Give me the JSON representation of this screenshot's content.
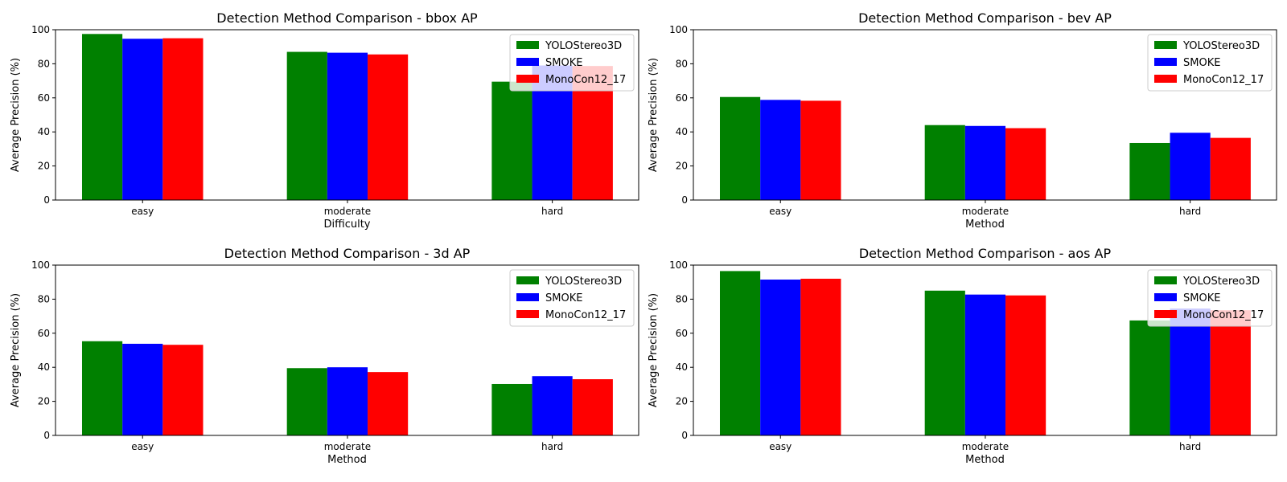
{
  "chart_data": [
    {
      "type": "bar",
      "title": "Detection Method Comparison - bbox AP",
      "xlabel": "Difficulty",
      "ylabel": "Average Precision (%)",
      "categories": [
        "easy",
        "moderate",
        "hard"
      ],
      "ylim": [
        0,
        100
      ],
      "yticks": [
        0,
        20,
        40,
        60,
        80,
        100
      ],
      "legend": "top-right",
      "grid": false,
      "series": [
        {
          "name": "YOLOStereo3D",
          "color": "#008000",
          "values": [
            97.5,
            87.0,
            69.5
          ]
        },
        {
          "name": "SMOKE",
          "color": "#0000ff",
          "values": [
            94.7,
            86.5,
            79.0
          ]
        },
        {
          "name": "MonoCon12_17",
          "color": "#ff0000",
          "values": [
            95.0,
            85.5,
            78.7
          ]
        }
      ]
    },
    {
      "type": "bar",
      "title": "Detection Method Comparison - bev AP",
      "xlabel": "Method",
      "ylabel": "Average Precision (%)",
      "categories": [
        "easy",
        "moderate",
        "hard"
      ],
      "ylim": [
        0,
        100
      ],
      "yticks": [
        0,
        20,
        40,
        60,
        80,
        100
      ],
      "legend": "top-right",
      "grid": false,
      "series": [
        {
          "name": "YOLOStereo3D",
          "color": "#008000",
          "values": [
            60.5,
            44.0,
            33.5
          ]
        },
        {
          "name": "SMOKE",
          "color": "#0000ff",
          "values": [
            58.8,
            43.5,
            39.5
          ]
        },
        {
          "name": "MonoCon12_17",
          "color": "#ff0000",
          "values": [
            58.3,
            42.2,
            36.5
          ]
        }
      ]
    },
    {
      "type": "bar",
      "title": "Detection Method Comparison - 3d AP",
      "xlabel": "Method",
      "ylabel": "Average Precision (%)",
      "categories": [
        "easy",
        "moderate",
        "hard"
      ],
      "ylim": [
        0,
        100
      ],
      "yticks": [
        0,
        20,
        40,
        60,
        80,
        100
      ],
      "legend": "top-right",
      "grid": false,
      "series": [
        {
          "name": "YOLOStereo3D",
          "color": "#008000",
          "values": [
            55.3,
            39.5,
            30.2
          ]
        },
        {
          "name": "SMOKE",
          "color": "#0000ff",
          "values": [
            53.8,
            40.0,
            34.8
          ]
        },
        {
          "name": "MonoCon12_17",
          "color": "#ff0000",
          "values": [
            53.2,
            37.2,
            33.0
          ]
        }
      ]
    },
    {
      "type": "bar",
      "title": "Detection Method Comparison - aos AP",
      "xlabel": "Method",
      "ylabel": "Average Precision (%)",
      "categories": [
        "easy",
        "moderate",
        "hard"
      ],
      "ylim": [
        0,
        100
      ],
      "yticks": [
        0,
        20,
        40,
        60,
        80,
        100
      ],
      "legend": "top-right",
      "grid": false,
      "series": [
        {
          "name": "YOLOStereo3D",
          "color": "#008000",
          "values": [
            96.5,
            85.0,
            67.5
          ]
        },
        {
          "name": "SMOKE",
          "color": "#0000ff",
          "values": [
            91.5,
            82.7,
            74.5
          ]
        },
        {
          "name": "MonoCon12_17",
          "color": "#ff0000",
          "values": [
            92.0,
            82.2,
            73.5
          ]
        }
      ]
    }
  ]
}
